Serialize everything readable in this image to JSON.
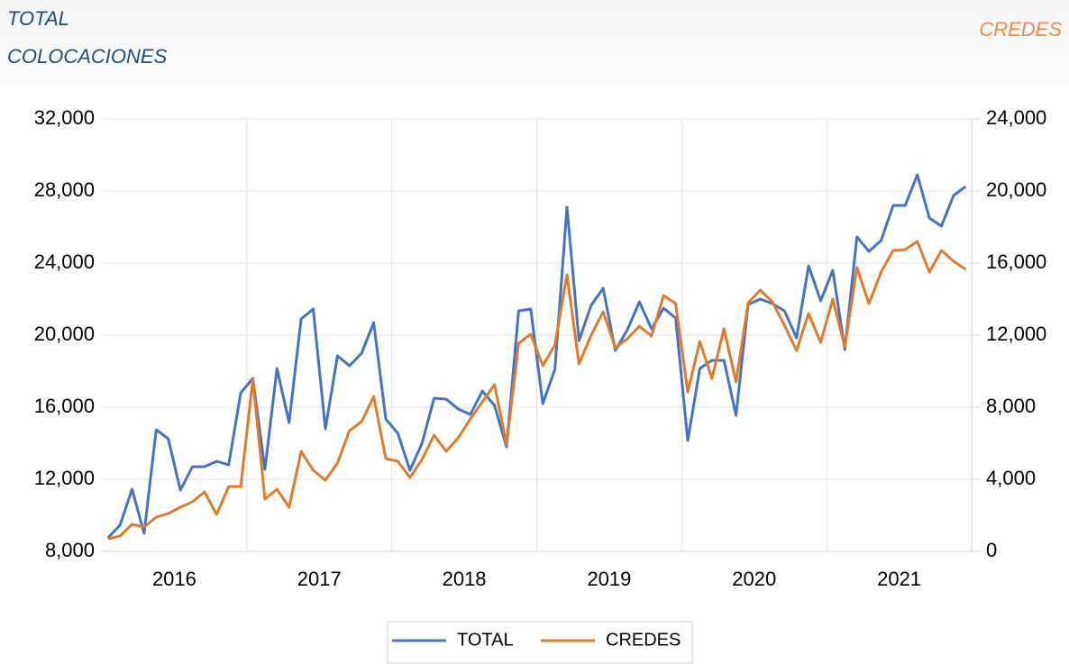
{
  "chart_data": {
    "type": "line",
    "y_label": "TOTAL COLOCACIONES",
    "y2_label": "CREDES",
    "categories": [
      null,
      null,
      null,
      null,
      null,
      null,
      "2016",
      null,
      null,
      null,
      null,
      null,
      null,
      null,
      null,
      null,
      null,
      null,
      "2017",
      null,
      null,
      null,
      null,
      null,
      null,
      null,
      null,
      null,
      null,
      null,
      "2018",
      null,
      null,
      null,
      null,
      null,
      null,
      null,
      null,
      null,
      null,
      null,
      "2019",
      null,
      null,
      null,
      null,
      null,
      null,
      null,
      null,
      null,
      null,
      null,
      "2020",
      null,
      null,
      null,
      null,
      null,
      null,
      null,
      null,
      null,
      null,
      null,
      "2021",
      null,
      null,
      null,
      null,
      null
    ],
    "series": [
      {
        "name": "TOTAL",
        "color": "#4472c4",
        "values": [
          8750,
          9450,
          11450,
          9000,
          14750,
          14250,
          11400,
          12700,
          12700,
          13000,
          12800,
          16800,
          17600,
          12550,
          18150,
          15150,
          20900,
          21450,
          14800,
          18850,
          18300,
          19000,
          20700,
          15350,
          14550,
          12500,
          14000,
          16500,
          16450,
          15900,
          15600,
          16900,
          16100,
          13800,
          21350,
          21450,
          16200,
          18100,
          27100,
          19700,
          21650,
          22600,
          19150,
          20300,
          21850,
          20350,
          21500,
          20950,
          14150,
          18150,
          18600,
          18600,
          15550,
          21700,
          22000,
          21750,
          21350,
          19850,
          23850,
          21900,
          23600,
          19200,
          25450,
          24650,
          25250,
          27200,
          27200,
          28900,
          26500,
          26050,
          27750,
          28250
        ]
      },
      {
        "name": "CREDES",
        "color": "#e07b2c",
        "axis": "y2",
        "values": [
          700,
          850,
          1500,
          1350,
          1900,
          2100,
          2450,
          2750,
          3300,
          2050,
          3600,
          3600,
          9550,
          2900,
          3450,
          2450,
          5550,
          4500,
          3950,
          4900,
          6700,
          7200,
          8600,
          5150,
          5000,
          4100,
          5100,
          6450,
          5550,
          6300,
          7350,
          8300,
          9250,
          5950,
          11550,
          12050,
          10300,
          11450,
          15350,
          10400,
          12000,
          13300,
          11300,
          11800,
          12500,
          11950,
          14200,
          13750,
          8850,
          11650,
          9600,
          12350,
          9400,
          13800,
          14500,
          13850,
          12550,
          11150,
          13200,
          11600,
          14000,
          11350,
          15750,
          13750,
          15500,
          16700,
          16750,
          17200,
          15500,
          16700,
          16100,
          15650
        ]
      }
    ],
    "ylim": [
      8000,
      32000
    ],
    "yticks": [
      {
        "value": 8000,
        "label": "8,000"
      },
      {
        "value": 12000,
        "label": "12,000"
      },
      {
        "value": 16000,
        "label": "16,000"
      },
      {
        "value": 20000,
        "label": "20,000"
      },
      {
        "value": 24000,
        "label": "24,000"
      },
      {
        "value": 28000,
        "label": "28,000"
      },
      {
        "value": 32000,
        "label": "32,000"
      }
    ],
    "y2lim": [
      0,
      24000
    ],
    "y2ticks": [
      0,
      {
        "value": 4000,
        "label": "4,000"
      },
      {
        "value": 8000,
        "label": "8,000"
      },
      {
        "value": 12000,
        "label": "12,000"
      },
      {
        "value": 16000,
        "label": "16,000"
      },
      {
        "value": 20000,
        "label": "20,000"
      },
      {
        "value": 24000,
        "label": "24,000"
      }
    ],
    "grid": true,
    "legend": "bottom"
  }
}
